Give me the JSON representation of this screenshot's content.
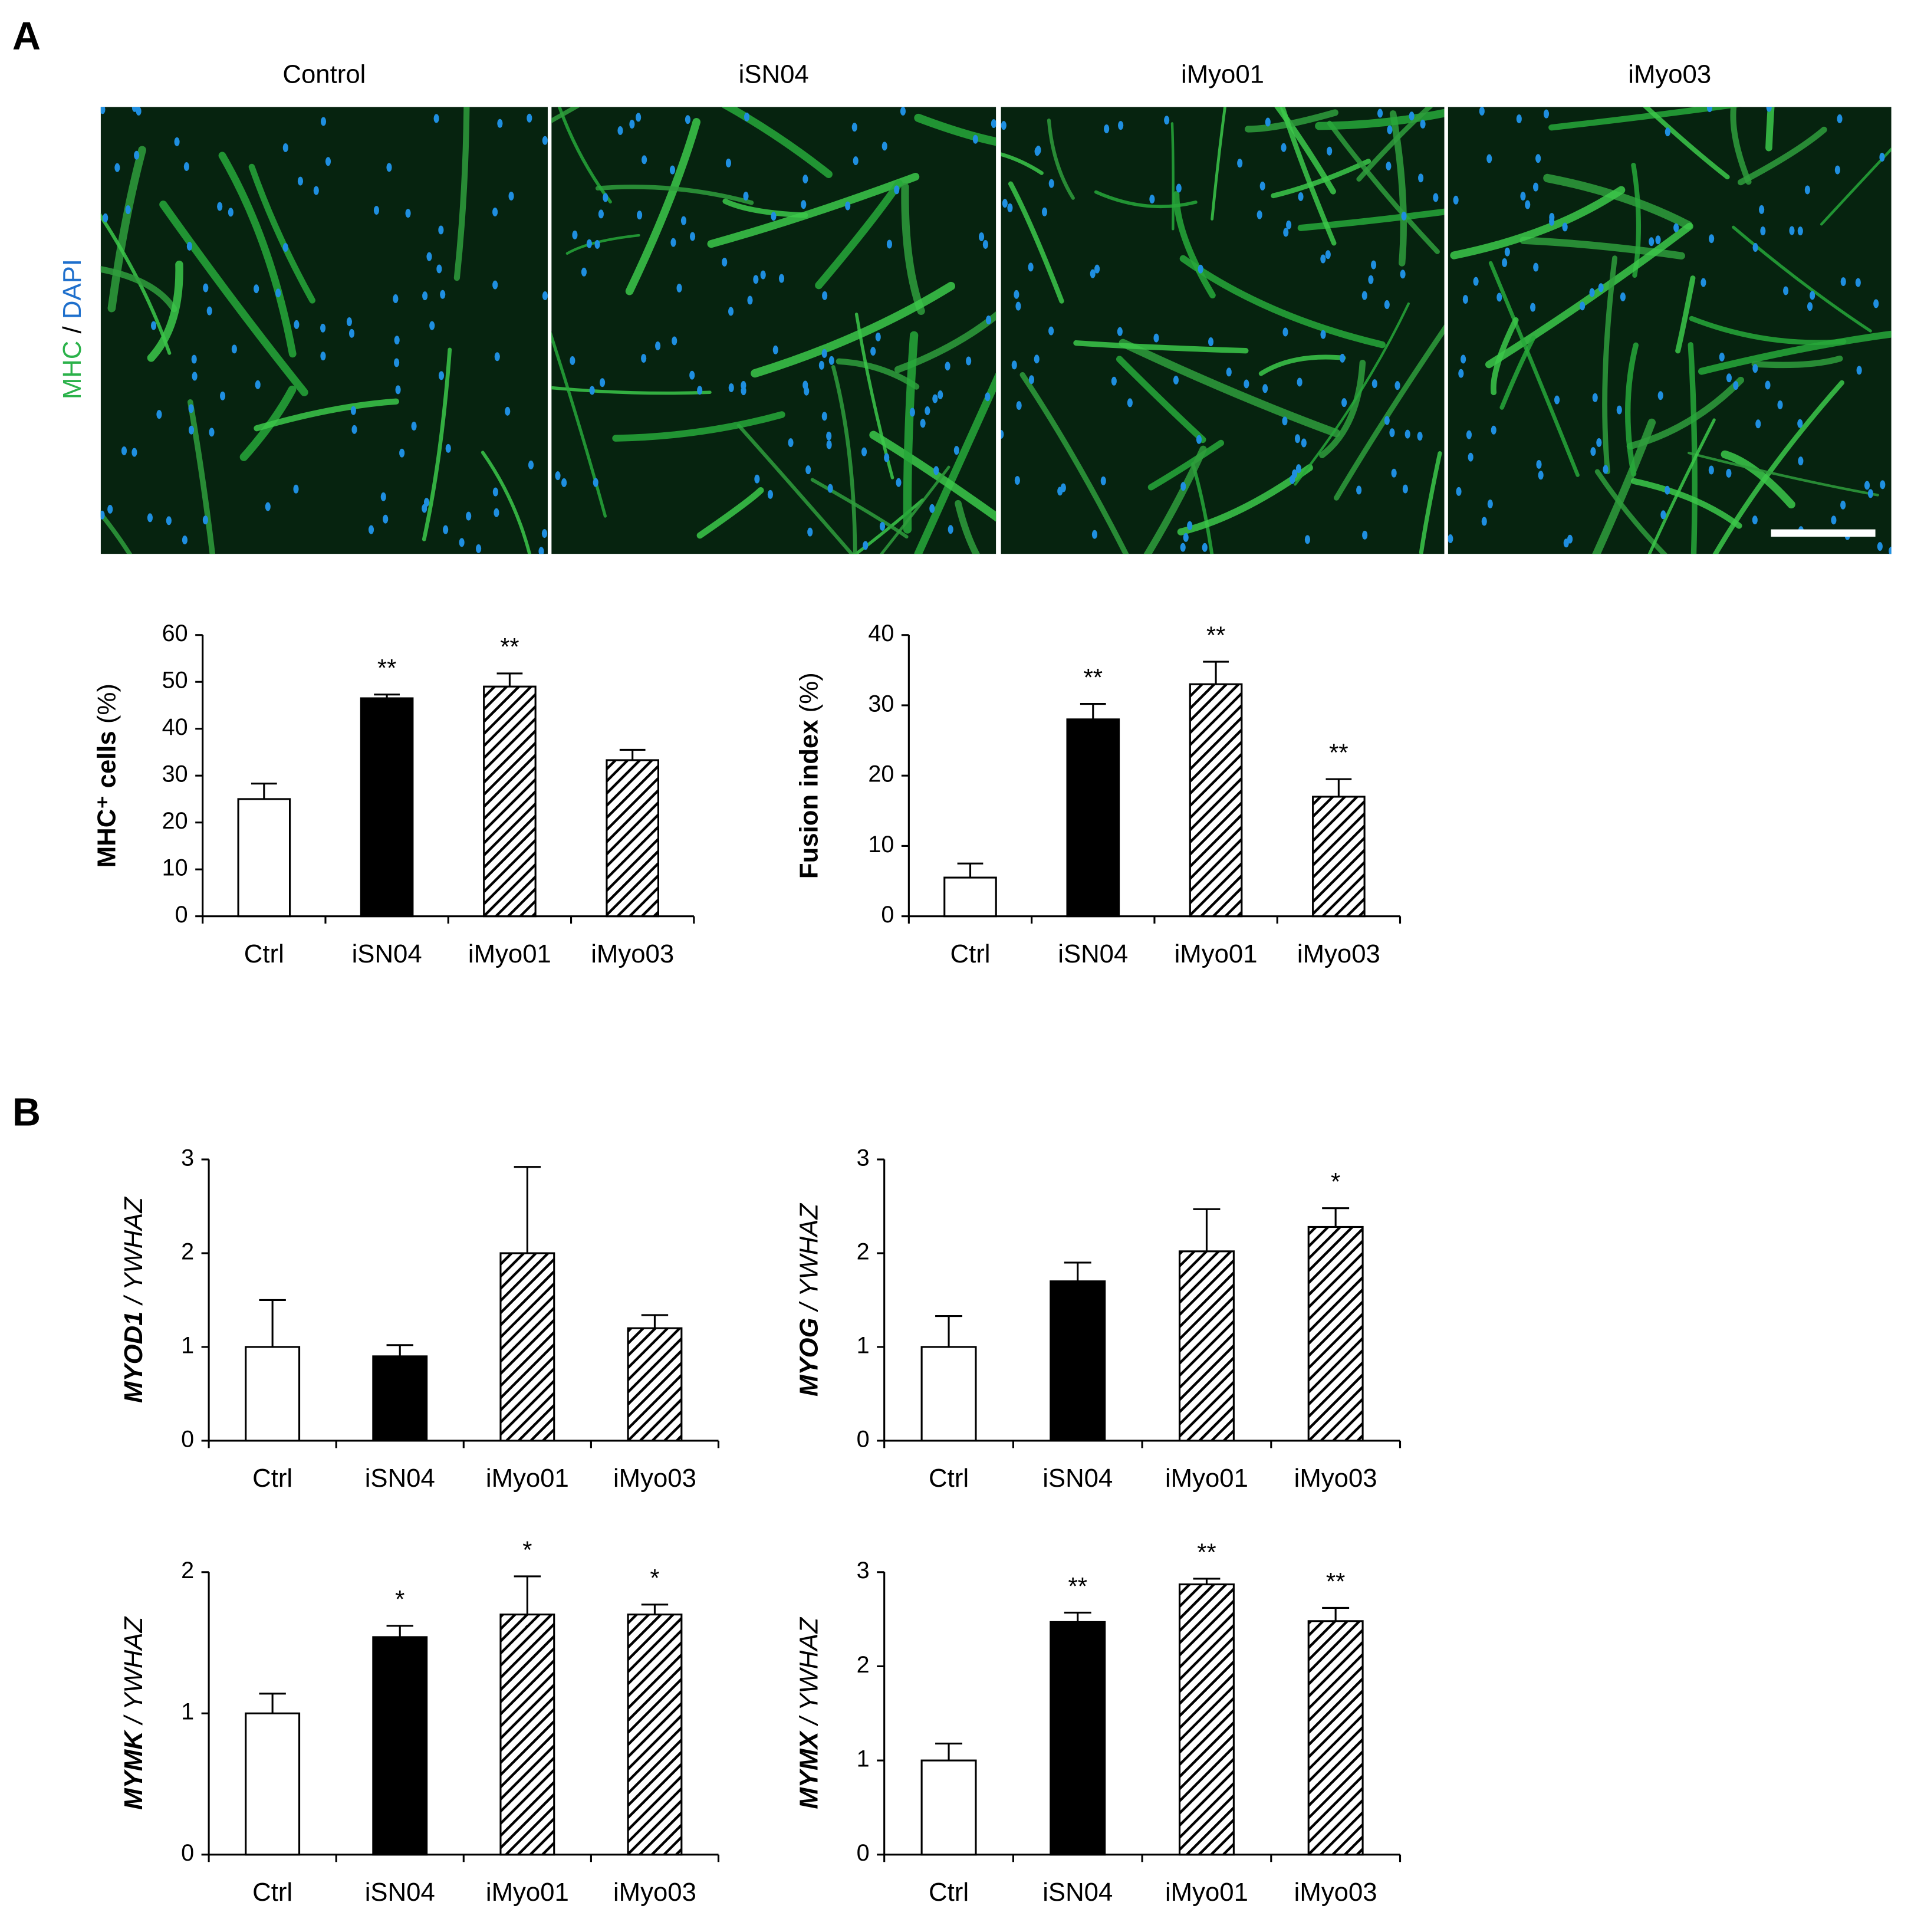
{
  "panels": [
    "A",
    "B"
  ],
  "stain_label": [
    "MHC",
    " / ",
    "DAPI"
  ],
  "image_titles": [
    "Control",
    "iSN04",
    "iMyo01",
    "iMyo03"
  ],
  "chart_data": [
    {
      "type": "bar",
      "y_label": [
        "MHC⁺ cells",
        "(%)"
      ],
      "categories": [
        "Ctrl",
        "iSN04",
        "iMyo01",
        "iMyo03"
      ],
      "values": [
        25,
        46.5,
        49,
        33.3
      ],
      "errors": [
        3.3,
        0.8,
        2.8,
        2.2
      ],
      "annotations": [
        null,
        "**",
        "**",
        null
      ],
      "bar_fills": [
        "#ffffff",
        "#000000",
        "hatch",
        "hatch"
      ],
      "ylim": [
        0,
        60
      ],
      "yticks": [
        0,
        10,
        20,
        30,
        40,
        50,
        60
      ]
    },
    {
      "type": "bar",
      "y_label": [
        "Fusion index",
        "(%)"
      ],
      "categories": [
        "Ctrl",
        "iSN04",
        "iMyo01",
        "iMyo03"
      ],
      "values": [
        5.5,
        28,
        33,
        17
      ],
      "errors": [
        2,
        2.2,
        3.2,
        2.5
      ],
      "annotations": [
        null,
        "**",
        "**",
        "**"
      ],
      "bar_fills": [
        "#ffffff",
        "#000000",
        "hatch",
        "hatch"
      ],
      "ylim": [
        0,
        40
      ],
      "yticks": [
        0,
        10,
        20,
        30,
        40
      ]
    },
    {
      "type": "bar",
      "y_label": [
        "MYOD1",
        "/ YWHAZ"
      ],
      "categories": [
        "Ctrl",
        "iSN04",
        "iMyo01",
        "iMyo03"
      ],
      "values": [
        1.0,
        0.9,
        2.0,
        1.2
      ],
      "errors": [
        0.5,
        0.12,
        0.92,
        0.14
      ],
      "annotations": [
        null,
        null,
        null,
        null
      ],
      "bar_fills": [
        "#ffffff",
        "#000000",
        "hatch",
        "hatch"
      ],
      "ylim": [
        0,
        3
      ],
      "yticks": [
        0,
        1,
        2,
        3
      ]
    },
    {
      "type": "bar",
      "y_label": [
        "MYOG",
        "/ YWHAZ"
      ],
      "categories": [
        "Ctrl",
        "iSN04",
        "iMyo01",
        "iMyo03"
      ],
      "values": [
        1.0,
        1.7,
        2.02,
        2.28
      ],
      "errors": [
        0.33,
        0.2,
        0.45,
        0.2
      ],
      "annotations": [
        null,
        null,
        null,
        "*"
      ],
      "bar_fills": [
        "#ffffff",
        "#000000",
        "hatch",
        "hatch"
      ],
      "ylim": [
        0,
        3
      ],
      "yticks": [
        0,
        1,
        2,
        3
      ]
    },
    {
      "type": "bar",
      "y_label": [
        "MYMK",
        "/ YWHAZ"
      ],
      "categories": [
        "Ctrl",
        "iSN04",
        "iMyo01",
        "iMyo03"
      ],
      "values": [
        1.0,
        1.54,
        1.7,
        1.7
      ],
      "errors": [
        0.14,
        0.08,
        0.27,
        0.07
      ],
      "annotations": [
        null,
        "*",
        "*",
        "*"
      ],
      "bar_fills": [
        "#ffffff",
        "#000000",
        "hatch",
        "hatch"
      ],
      "ylim": [
        0,
        2
      ],
      "yticks": [
        0,
        1,
        2
      ]
    },
    {
      "type": "bar",
      "y_label": [
        "MYMX",
        "/ YWHAZ"
      ],
      "categories": [
        "Ctrl",
        "iSN04",
        "iMyo01",
        "iMyo03"
      ],
      "values": [
        1.0,
        2.47,
        2.87,
        2.48
      ],
      "errors": [
        0.18,
        0.1,
        0.06,
        0.14
      ],
      "annotations": [
        null,
        "**",
        "**",
        "**"
      ],
      "bar_fills": [
        "#ffffff",
        "#000000",
        "hatch",
        "hatch"
      ],
      "ylim": [
        0,
        3
      ],
      "yticks": [
        0,
        1,
        2,
        3
      ]
    }
  ]
}
